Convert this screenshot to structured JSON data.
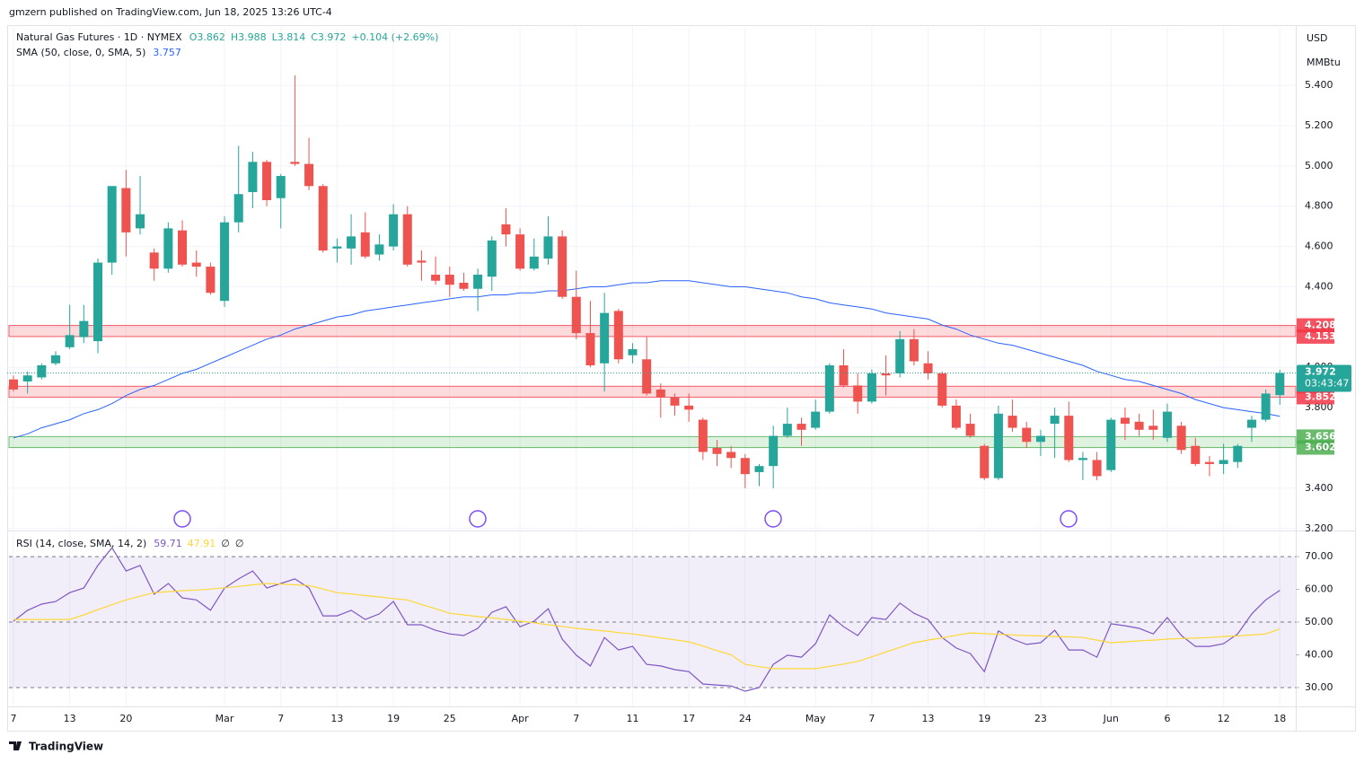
{
  "header": {
    "publisher": "gmzern published on TradingView.com, Jun 18, 2025 13:26 UTC-4",
    "brand": "TradingView"
  },
  "chart_data": [
    {
      "type": "candlestick",
      "title": "Natural Gas Futures · 1D · NYMEX",
      "ohlc_labels": [
        "O3.862",
        "H3.988",
        "L3.814",
        "C3.972",
        "+0.104 (+2.69%)"
      ],
      "currency": "USD",
      "unit": "MMBtu",
      "countdown": "03:43:47",
      "up_color": "#26a69a",
      "down_color": "#ef5350",
      "categories": [
        "7",
        null,
        null,
        null,
        "13",
        null,
        null,
        null,
        "20",
        null,
        null,
        null,
        null,
        null,
        null,
        "Mar",
        null,
        null,
        null,
        "7",
        null,
        null,
        null,
        "13",
        null,
        null,
        null,
        "19",
        null,
        null,
        null,
        "25",
        null,
        null,
        null,
        null,
        "Apr",
        null,
        null,
        null,
        "7",
        null,
        null,
        null,
        "11",
        null,
        null,
        null,
        "17",
        null,
        null,
        null,
        "24",
        null,
        null,
        null,
        null,
        "May",
        null,
        null,
        null,
        "7",
        null,
        null,
        null,
        "13",
        null,
        null,
        null,
        "19",
        null,
        null,
        null,
        "23",
        null,
        null,
        null,
        null,
        "Jun",
        null,
        null,
        null,
        "6",
        null,
        null,
        null,
        "12",
        null,
        null,
        null,
        "18"
      ],
      "open": [
        3.94,
        3.93,
        3.95,
        4.02,
        4.1,
        4.15,
        4.13,
        4.52,
        4.89,
        4.69,
        4.57,
        4.49,
        4.68,
        4.52,
        4.5,
        4.33,
        4.72,
        4.87,
        5.02,
        4.84,
        5.02,
        5.01,
        4.9,
        4.59,
        4.59,
        4.67,
        4.56,
        4.6,
        4.76,
        4.53,
        4.46,
        4.46,
        4.42,
        4.39,
        4.45,
        4.71,
        4.66,
        4.49,
        4.54,
        4.65,
        4.35,
        4.17,
        4.02,
        4.28,
        4.06,
        4.04,
        3.89,
        3.85,
        3.81,
        3.74,
        3.6,
        3.58,
        3.55,
        3.48,
        3.51,
        3.66,
        3.72,
        3.7,
        3.78,
        4.01,
        3.91,
        3.83,
        3.97,
        3.97,
        4.14,
        4.02,
        3.97,
        3.81,
        3.72,
        3.61,
        3.45,
        3.76,
        3.7,
        3.63,
        3.72,
        3.76,
        3.54,
        3.54,
        3.49,
        3.75,
        3.73,
        3.71,
        3.65,
        3.71,
        3.61,
        3.53,
        3.52,
        3.53,
        3.7,
        3.74,
        3.862
      ],
      "high": [
        3.96,
        3.98,
        4.02,
        4.08,
        4.31,
        4.31,
        4.54,
        4.9,
        4.98,
        4.95,
        4.59,
        4.72,
        4.73,
        4.58,
        4.52,
        4.75,
        5.1,
        5.07,
        5.03,
        4.96,
        5.45,
        5.14,
        4.91,
        4.64,
        4.76,
        4.77,
        4.66,
        4.81,
        4.8,
        4.58,
        4.55,
        4.5,
        4.47,
        4.49,
        4.65,
        4.79,
        4.69,
        4.64,
        4.75,
        4.68,
        4.48,
        4.33,
        4.37,
        4.29,
        4.12,
        4.15,
        3.92,
        3.87,
        3.87,
        3.75,
        3.64,
        3.61,
        3.57,
        3.52,
        3.71,
        3.8,
        3.75,
        3.84,
        4.02,
        4.09,
        3.97,
        3.99,
        4.06,
        4.18,
        4.19,
        4.08,
        3.98,
        3.84,
        3.77,
        3.62,
        3.81,
        3.84,
        3.73,
        3.69,
        3.8,
        3.83,
        3.58,
        3.58,
        3.75,
        3.8,
        3.77,
        3.79,
        3.82,
        3.73,
        3.65,
        3.56,
        3.62,
        3.62,
        3.76,
        3.89,
        3.988
      ],
      "low": [
        3.88,
        3.87,
        3.94,
        4.01,
        4.09,
        4.12,
        4.07,
        4.46,
        4.55,
        4.66,
        4.43,
        4.47,
        4.5,
        4.45,
        4.36,
        4.3,
        4.67,
        4.79,
        4.8,
        4.69,
        5.0,
        4.88,
        4.57,
        4.52,
        4.51,
        4.54,
        4.53,
        4.58,
        4.5,
        4.43,
        4.41,
        4.35,
        4.38,
        4.28,
        4.38,
        4.6,
        4.48,
        4.48,
        4.51,
        4.34,
        4.14,
        4.0,
        3.88,
        4.02,
        4.02,
        3.86,
        3.75,
        3.76,
        3.73,
        3.54,
        3.51,
        3.5,
        3.4,
        3.41,
        3.4,
        3.65,
        3.61,
        3.69,
        3.77,
        3.9,
        3.77,
        3.82,
        3.86,
        3.95,
        4.01,
        3.94,
        3.8,
        3.69,
        3.65,
        3.44,
        3.44,
        3.68,
        3.6,
        3.56,
        3.55,
        3.53,
        3.44,
        3.44,
        3.48,
        3.64,
        3.66,
        3.64,
        3.63,
        3.57,
        3.51,
        3.46,
        3.47,
        3.5,
        3.63,
        3.73,
        3.814
      ],
      "close": [
        3.89,
        3.96,
        4.01,
        4.06,
        4.16,
        4.23,
        4.52,
        4.9,
        4.67,
        4.76,
        4.49,
        4.69,
        4.51,
        4.5,
        4.37,
        4.72,
        4.86,
        5.02,
        4.83,
        4.95,
        5.01,
        4.9,
        4.58,
        4.6,
        4.65,
        4.55,
        4.61,
        4.76,
        4.51,
        4.52,
        4.43,
        4.41,
        4.39,
        4.46,
        4.63,
        4.66,
        4.49,
        4.55,
        4.65,
        4.35,
        4.17,
        4.01,
        4.27,
        4.04,
        4.09,
        3.87,
        3.85,
        3.81,
        3.79,
        3.58,
        3.57,
        3.55,
        3.47,
        3.51,
        3.66,
        3.72,
        3.69,
        3.78,
        4.01,
        3.91,
        3.83,
        3.97,
        3.96,
        4.14,
        4.03,
        3.97,
        3.81,
        3.7,
        3.66,
        3.45,
        3.77,
        3.7,
        3.63,
        3.66,
        3.76,
        3.54,
        3.55,
        3.46,
        3.74,
        3.72,
        3.69,
        3.69,
        3.78,
        3.59,
        3.52,
        3.52,
        3.54,
        3.61,
        3.74,
        3.87,
        3.972
      ],
      "series": [
        {
          "name": "SMA (50, close, 0, SMA, 5)",
          "color": "#2962ff",
          "values": [
            3.65,
            3.67,
            3.7,
            3.72,
            3.74,
            3.77,
            3.79,
            3.82,
            3.86,
            3.89,
            3.91,
            3.94,
            3.97,
            3.99,
            4.02,
            4.05,
            4.08,
            4.11,
            4.14,
            4.16,
            4.19,
            4.21,
            4.23,
            4.25,
            4.26,
            4.28,
            4.29,
            4.3,
            4.31,
            4.32,
            4.33,
            4.34,
            4.35,
            4.35,
            4.36,
            4.36,
            4.37,
            4.37,
            4.38,
            4.38,
            4.39,
            4.4,
            4.4,
            4.41,
            4.42,
            4.42,
            4.43,
            4.43,
            4.43,
            4.42,
            4.41,
            4.4,
            4.4,
            4.39,
            4.38,
            4.37,
            4.35,
            4.34,
            4.32,
            4.31,
            4.3,
            4.29,
            4.27,
            4.26,
            4.25,
            4.24,
            4.21,
            4.19,
            4.16,
            4.14,
            4.12,
            4.11,
            4.09,
            4.07,
            4.05,
            4.03,
            4.01,
            3.98,
            3.96,
            3.94,
            3.93,
            3.91,
            3.89,
            3.87,
            3.84,
            3.82,
            3.8,
            3.79,
            3.78,
            3.77,
            3.757
          ]
        }
      ],
      "zones": [
        {
          "top": 4.208,
          "bottom": 4.153,
          "color": "#f23645"
        },
        {
          "top": 3.906,
          "bottom": 3.852,
          "color": "#f23645"
        },
        {
          "top": 3.656,
          "bottom": 3.602,
          "color": "#4caf50"
        }
      ],
      "ylim": [
        3.19,
        5.69
      ],
      "yticks": [
        {
          "value": 3.2,
          "label": "3.200"
        },
        {
          "value": 3.4,
          "label": "3.400"
        },
        {
          "value": 3.6,
          "label": "3.600"
        },
        {
          "value": 3.8,
          "label": "3.800"
        },
        {
          "value": 4.0,
          "label": "4.000"
        },
        {
          "value": 4.2,
          "label": "4.200"
        },
        {
          "value": 4.4,
          "label": "4.400"
        },
        {
          "value": 4.6,
          "label": "4.600"
        },
        {
          "value": 4.8,
          "label": "4.800"
        },
        {
          "value": 5.0,
          "label": "5.000"
        },
        {
          "value": 5.2,
          "label": "5.200"
        },
        {
          "value": 5.4,
          "label": "5.400"
        }
      ],
      "grid": true
    },
    {
      "type": "line",
      "title": "RSI (14, close, SMA, 14, 2)",
      "legend_extra": [
        "∅",
        "∅"
      ],
      "series": [
        {
          "name": "RSI",
          "color": "#7e57c2",
          "values": [
            50.3,
            53.6,
            55.5,
            56.3,
            59.0,
            60.4,
            67.3,
            72.7,
            65.6,
            67.3,
            58.5,
            61.8,
            57.4,
            56.8,
            53.6,
            60.4,
            63.2,
            65.6,
            60.4,
            61.8,
            63.2,
            60.4,
            51.9,
            51.9,
            53.6,
            50.8,
            52.5,
            56.3,
            49.2,
            49.2,
            47.5,
            46.4,
            45.9,
            48.1,
            53.0,
            54.7,
            48.6,
            50.3,
            54.1,
            44.8,
            39.9,
            36.6,
            45.3,
            41.5,
            42.6,
            37.1,
            36.6,
            35.5,
            34.9,
            31.1,
            30.8,
            30.5,
            28.9,
            30.0,
            37.1,
            39.9,
            39.3,
            43.4,
            52.2,
            48.6,
            45.9,
            51.4,
            50.8,
            55.8,
            52.7,
            50.8,
            45.3,
            42.1,
            40.4,
            34.9,
            47.3,
            44.8,
            43.2,
            43.7,
            47.5,
            41.5,
            41.5,
            39.3,
            49.5,
            48.9,
            48.1,
            46.4,
            51.4,
            45.9,
            42.6,
            42.6,
            43.4,
            46.4,
            52.5,
            56.8,
            59.71
          ]
        },
        {
          "name": "RSI-based MA",
          "color": "#fdd835",
          "values": [
            50.8,
            50.8,
            50.8,
            50.8,
            50.8,
            52.2,
            53.8,
            55.3,
            56.8,
            57.9,
            59.0,
            59.3,
            59.6,
            59.8,
            60.1,
            60.5,
            60.9,
            61.4,
            61.8,
            61.6,
            61.4,
            61.2,
            60.1,
            59.0,
            58.6,
            58.1,
            57.7,
            57.2,
            56.8,
            55.4,
            54.1,
            52.7,
            52.2,
            51.7,
            51.3,
            50.8,
            50.3,
            49.8,
            49.2,
            48.7,
            48.1,
            47.7,
            47.3,
            46.8,
            46.4,
            45.8,
            45.2,
            44.6,
            44.0,
            42.7,
            41.3,
            40.0,
            37.1,
            36.4,
            35.8,
            35.8,
            35.8,
            35.8,
            36.5,
            37.2,
            38.0,
            39.4,
            40.9,
            42.3,
            43.7,
            44.5,
            45.2,
            46.0,
            46.7,
            46.5,
            46.3,
            46.1,
            45.9,
            45.8,
            45.6,
            45.5,
            45.3,
            44.5,
            43.7,
            44.0,
            44.3,
            44.5,
            44.8,
            45.0,
            45.1,
            45.3,
            45.6,
            45.8,
            46.1,
            46.4,
            47.91
          ]
        }
      ],
      "bands": [
        70,
        50,
        30
      ],
      "ylim": [
        24.8,
        77.7
      ],
      "yticks": [
        {
          "value": 30,
          "label": "30.00"
        },
        {
          "value": 40,
          "label": "40.00"
        },
        {
          "value": 50,
          "label": "50.00"
        },
        {
          "value": 60,
          "label": "60.00"
        },
        {
          "value": 70,
          "label": "70.00"
        }
      ]
    }
  ]
}
